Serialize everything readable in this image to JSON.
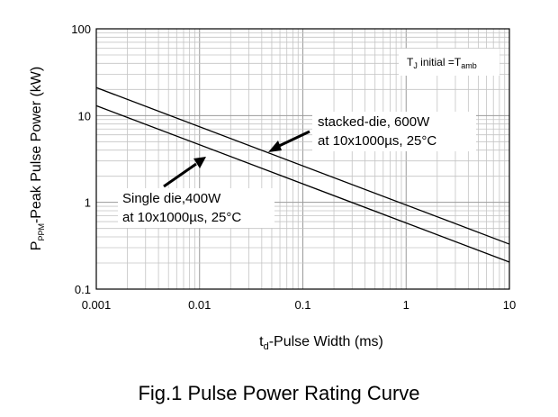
{
  "chart_data": {
    "type": "line",
    "title": "",
    "xscale": "log",
    "yscale": "log",
    "xlim": [
      0.001,
      10
    ],
    "ylim": [
      0.1,
      100
    ],
    "grid": true,
    "xticks": [
      "0.001",
      "0.01",
      "0.1",
      "1",
      "10"
    ],
    "yticks": [
      "0.1",
      "1",
      "10",
      "100"
    ],
    "xlabel": {
      "main": "t",
      "sub": "d",
      "rest": "-Pulse Width (ms)"
    },
    "ylabel": {
      "main": "P",
      "sub": "PPM",
      "rest": "-Peak Pulse Power (kW)"
    },
    "series": [
      {
        "name": "stacked-die, 600W at 10x1000µs, 25°C",
        "x": [
          0.001,
          10
        ],
        "y": [
          21,
          0.33
        ]
      },
      {
        "name": "Single die,400W at 10x1000µs, 25°C",
        "x": [
          0.001,
          10
        ],
        "y": [
          13,
          0.205
        ]
      }
    ],
    "annotations": {
      "stacked": {
        "line1": "stacked-die, 600W",
        "line2": "at 10x1000µs, 25°C"
      },
      "single": {
        "line1": "Single die,400W",
        "line2": "at 10x1000µs, 25°C"
      }
    },
    "condition": {
      "t": "T",
      "t_sub": "J",
      "mid": " initial =T",
      "amb": "amb"
    }
  },
  "caption": "Fig.1 Pulse Power Rating Curve"
}
